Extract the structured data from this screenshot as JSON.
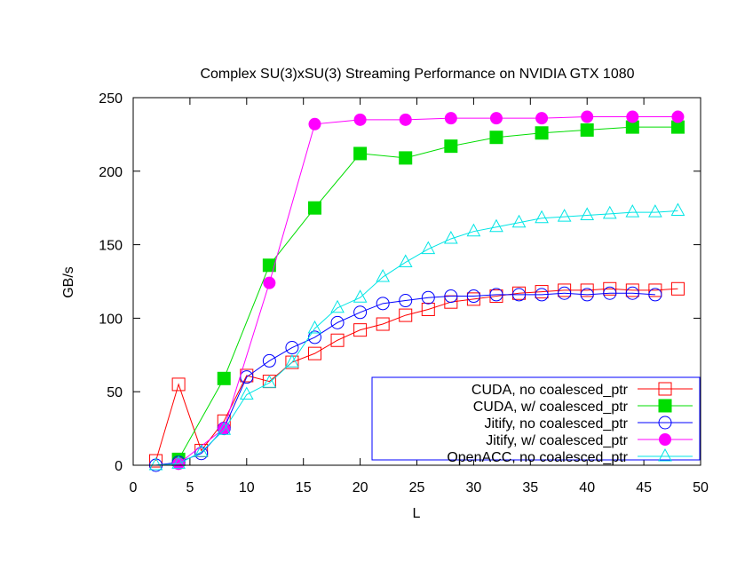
{
  "chart_data": {
    "type": "line",
    "title": "Complex SU(3)xSU(3) Streaming Performance on NVIDIA GTX 1080",
    "xlabel": "L",
    "ylabel": "GB/s",
    "xlim": [
      0,
      50
    ],
    "ylim": [
      0,
      250
    ],
    "xticks": [
      0,
      5,
      10,
      15,
      20,
      25,
      30,
      35,
      40,
      45,
      50
    ],
    "yticks": [
      0,
      50,
      100,
      150,
      200,
      250
    ],
    "grid": false,
    "legend_position": "bottom-right",
    "series": [
      {
        "name": "CUDA, no coalesced_ptr",
        "color": "#ff0000",
        "marker": "open-square",
        "x": [
          2,
          4,
          6,
          8,
          10,
          12,
          14,
          16,
          18,
          20,
          22,
          24,
          26,
          28,
          30,
          32,
          34,
          36,
          38,
          40,
          42,
          44,
          46,
          48
        ],
        "y": [
          3,
          55,
          10,
          30,
          61,
          57,
          70,
          76,
          85,
          92,
          96,
          102,
          106,
          111,
          113,
          115,
          117,
          118,
          119,
          119,
          120,
          119,
          119,
          120
        ]
      },
      {
        "name": "CUDA, w/ coalesced_ptr",
        "color": "#00dd00",
        "marker": "filled-square",
        "x": [
          4,
          8,
          12,
          16,
          20,
          24,
          28,
          32,
          36,
          40,
          44,
          48
        ],
        "y": [
          4,
          59,
          136,
          175,
          212,
          209,
          217,
          223,
          226,
          228,
          230,
          230
        ]
      },
      {
        "name": "Jitify, no coalesced_ptr",
        "color": "#0000ff",
        "marker": "open-circle",
        "x": [
          2,
          4,
          6,
          8,
          10,
          12,
          14,
          16,
          18,
          20,
          22,
          24,
          26,
          28,
          30,
          32,
          34,
          36,
          38,
          40,
          42,
          44,
          46
        ],
        "y": [
          0,
          2,
          8,
          25,
          60,
          71,
          80,
          87,
          97,
          104,
          110,
          112,
          114,
          115,
          115,
          116,
          116,
          116,
          117,
          116,
          117,
          117,
          116
        ]
      },
      {
        "name": "Jitify, w/ coalesced_ptr",
        "color": "#ff00ff",
        "marker": "filled-circle",
        "x": [
          4,
          8,
          12,
          16,
          20,
          24,
          28,
          32,
          36,
          40,
          44,
          48
        ],
        "y": [
          1,
          25,
          124,
          232,
          235,
          235,
          236,
          236,
          236,
          237,
          237,
          237
        ]
      },
      {
        "name": "OpenACC, no coalesced_ptr",
        "color": "#00e5e5",
        "marker": "open-triangle",
        "x": [
          2,
          4,
          6,
          8,
          10,
          12,
          14,
          16,
          18,
          20,
          22,
          24,
          26,
          28,
          30,
          32,
          34,
          36,
          38,
          40,
          42,
          44,
          46,
          48
        ],
        "y": [
          0,
          1,
          9,
          24,
          48,
          56,
          70,
          93,
          107,
          114,
          128,
          138,
          147,
          154,
          159,
          162,
          165,
          168,
          169,
          170,
          171,
          172,
          172,
          173
        ]
      }
    ]
  }
}
